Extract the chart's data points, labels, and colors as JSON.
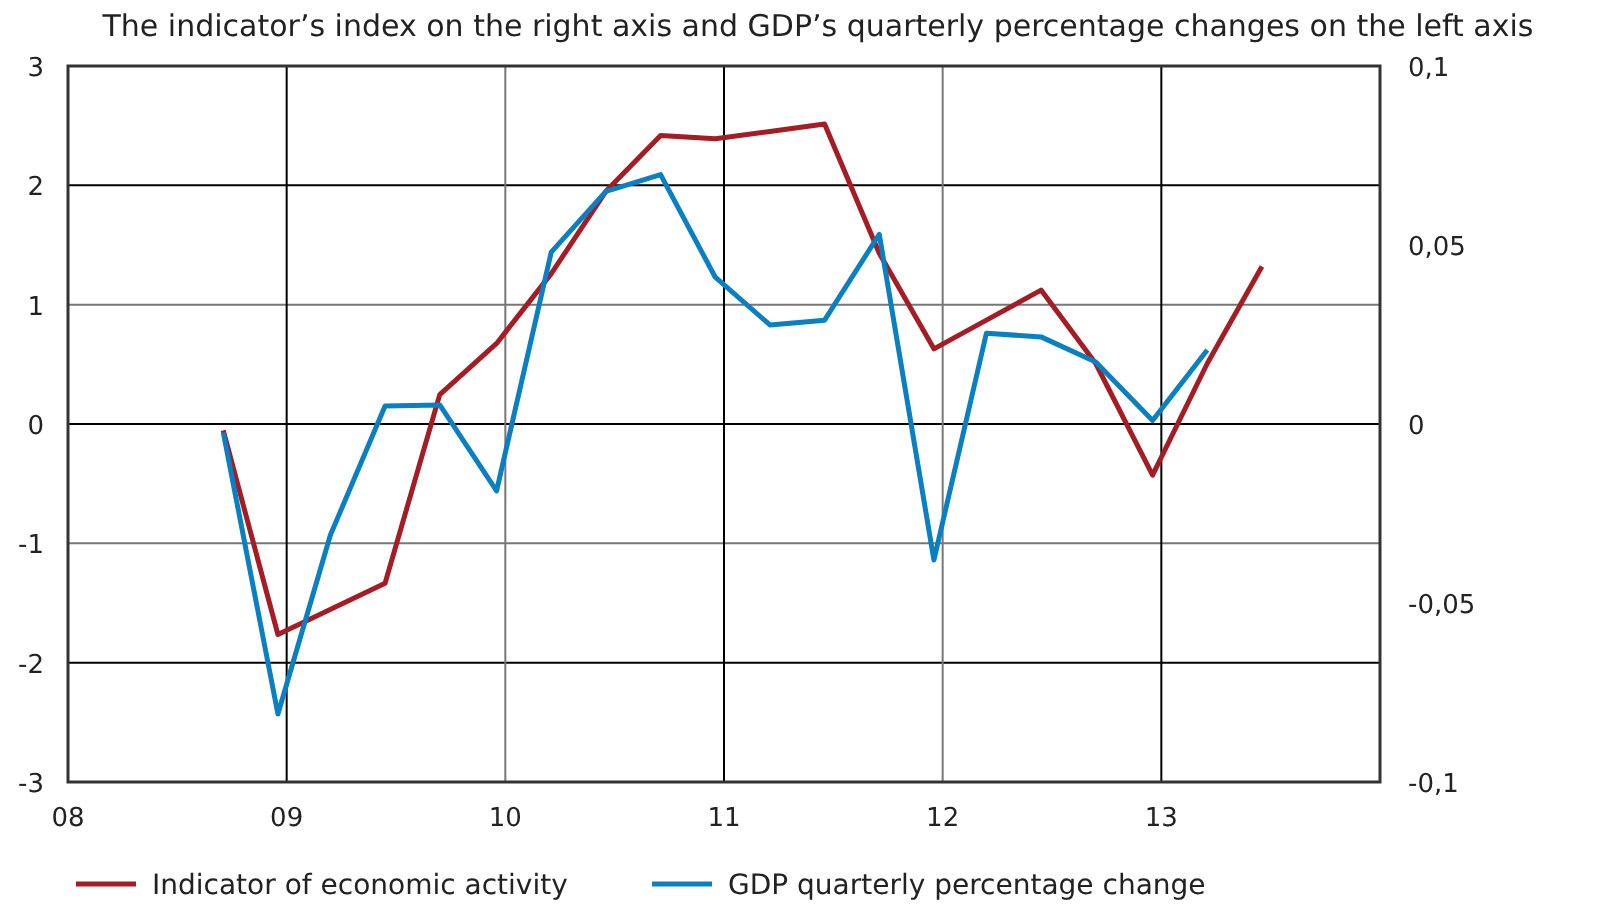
{
  "chart_data": {
    "type": "line",
    "title": "The indicator’s index on the right axis and GDP’s quarterly percentage changes on the left axis",
    "xlim": [
      2008,
      2014
    ],
    "xticks": [
      {
        "value": 2008,
        "label": "08"
      },
      {
        "value": 2009,
        "label": "09"
      },
      {
        "value": 2010,
        "label": "10"
      },
      {
        "value": 2011,
        "label": "11"
      },
      {
        "value": 2012,
        "label": "12"
      },
      {
        "value": 2013,
        "label": "13"
      },
      {
        "value": 2014,
        "label": null
      }
    ],
    "ylim": [
      -3,
      3
    ],
    "yticks": [
      -3,
      -2,
      -1,
      0,
      1,
      2,
      3
    ],
    "y2lim": [
      -0.1,
      0.1
    ],
    "y2ticks": [
      {
        "value": -0.1,
        "label": "-0,1"
      },
      {
        "value": -0.05,
        "label": "-0,05"
      },
      {
        "value": 0,
        "label": "0"
      },
      {
        "value": 0.05,
        "label": "0,05"
      },
      {
        "value": 0.1,
        "label": "0,1"
      }
    ],
    "grid": true,
    "legend": "bottom",
    "line_style": "solid",
    "series": [
      {
        "name": "Indicator of economic activity",
        "color": "#a51d24",
        "axis": "y2",
        "x": [
          2008.71,
          2008.96,
          2009.45,
          2009.7,
          2009.96,
          2010.21,
          2010.46,
          2010.71,
          2010.96,
          2011.21,
          2011.46,
          2011.71,
          2011.96,
          2012.2,
          2012.45,
          2012.7,
          2012.96,
          2013.21,
          2013.46
        ],
        "values": [
          -0.0018,
          -0.0588,
          -0.0445,
          0.0082,
          0.0225,
          0.042,
          0.065,
          0.0806,
          0.0797,
          0.0817,
          0.0838,
          0.0477,
          0.021,
          0.029,
          0.0374,
          0.0169,
          -0.0143,
          0.0169,
          0.044
        ]
      },
      {
        "name": "GDP quarterly percentage change",
        "color": "#0a7fc1",
        "x": [
          2008.71,
          2008.96,
          2009.2,
          2009.45,
          2009.7,
          2009.96,
          2010.21,
          2010.46,
          2010.71,
          2010.96,
          2011.21,
          2011.46,
          2011.71,
          2011.96,
          2012.2,
          2012.45,
          2012.7,
          2012.96,
          2013.21
        ],
        "values": [
          -0.07,
          -2.43,
          -0.93,
          0.15,
          0.16,
          -0.56,
          1.44,
          1.95,
          2.09,
          1.23,
          0.83,
          0.87,
          1.59,
          -1.14,
          0.76,
          0.73,
          0.52,
          0.03,
          0.62
        ]
      }
    ]
  }
}
